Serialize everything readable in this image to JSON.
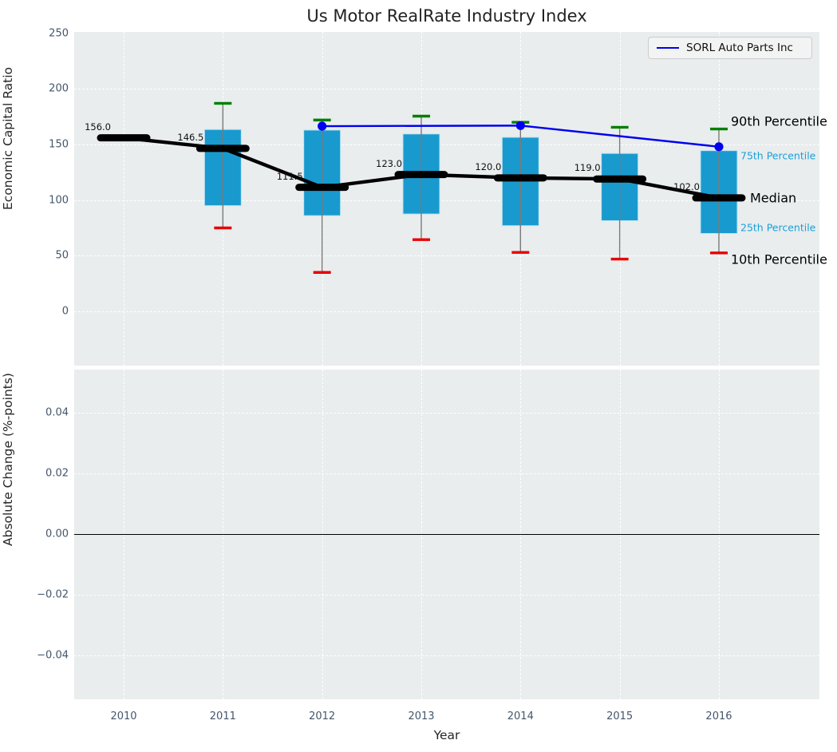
{
  "title": "Us Motor RealRate Industry Index",
  "legend": {
    "label": "SORL Auto Parts Inc",
    "line_color": "#0000ee"
  },
  "colors": {
    "axes_background": "#e9edee",
    "box_fill": "#189acf",
    "box_edge": "#bfe3f2",
    "median": "#000000",
    "whisker": "#7a7a7a",
    "cap_top": "#008000",
    "cap_bottom": "#e80000",
    "company_line": "#0000ee",
    "tick_text": "#44566b",
    "percentile_small_text": "#1b9fd8"
  },
  "top_axis": {
    "ylabel": "Economic Capital Ratio",
    "yticks": [
      250,
      200,
      150,
      100,
      50,
      0
    ],
    "ylim": [
      -48,
      252
    ]
  },
  "bottom_axis": {
    "ylabel": "Absolute Change (%-points)",
    "yticks": [
      "0.04",
      "0.02",
      "0.00",
      "−0.02",
      "−0.04"
    ],
    "ytick_values": [
      0.04,
      0.02,
      0.0,
      -0.02,
      -0.04
    ],
    "zero_line_value": "0.00"
  },
  "x_axis": {
    "xlabel": "Year",
    "ticks": [
      "2010",
      "2011",
      "2012",
      "2013",
      "2014",
      "2015",
      "2016"
    ]
  },
  "percentile_labels": [
    {
      "text": "90th Percentile",
      "size": "large",
      "color": "#000000",
      "anchor": "p90",
      "dy": -10,
      "x": 916
    },
    {
      "text": "75th Percentile",
      "size": "small",
      "color": "#1b9fd8",
      "anchor": "q3",
      "dy": 6,
      "x": 928
    },
    {
      "text": "Median",
      "size": "large",
      "color": "#000000",
      "anchor": "median",
      "dy": 0,
      "x": 940
    },
    {
      "text": "25th Percentile",
      "size": "small",
      "color": "#1b9fd8",
      "anchor": "q1",
      "dy": -7,
      "x": 928
    },
    {
      "text": "10th Percentile",
      "size": "large",
      "color": "#000000",
      "anchor": "p10",
      "dy": 8,
      "x": 916
    }
  ],
  "chart_data": {
    "type": "boxplot+line",
    "title": "Us Motor RealRate Industry Index",
    "xlabel": "Year",
    "ylabel_top": "Economic Capital Ratio",
    "ylabel_bottom": "Absolute Change (%-points)",
    "years": [
      2010,
      2011,
      2012,
      2013,
      2014,
      2015,
      2016
    ],
    "boxes": [
      {
        "year": 2010,
        "median": 156.0,
        "q1": null,
        "q3": null,
        "p10": null,
        "p90": null,
        "label": "156.0"
      },
      {
        "year": 2011,
        "median": 146.5,
        "q1": 95,
        "q3": 163.5,
        "p10": 75,
        "p90": 187,
        "label": "146.5"
      },
      {
        "year": 2012,
        "median": 111.5,
        "q1": 86,
        "q3": 163,
        "p10": 35,
        "p90": 172,
        "label": "111.5"
      },
      {
        "year": 2013,
        "median": 123.0,
        "q1": 87.5,
        "q3": 159.5,
        "p10": 64.5,
        "p90": 175.5,
        "label": "123.0"
      },
      {
        "year": 2014,
        "median": 120.0,
        "q1": 77,
        "q3": 156.5,
        "p10": 53,
        "p90": 170,
        "label": "120.0"
      },
      {
        "year": 2015,
        "median": 119.0,
        "q1": 81.5,
        "q3": 142,
        "p10": 47,
        "p90": 165.5,
        "label": "119.0"
      },
      {
        "year": 2016,
        "median": 102.0,
        "q1": 70,
        "q3": 144.5,
        "p10": 52.5,
        "p90": 164,
        "label": "102.0"
      }
    ],
    "series": [
      {
        "name": "SORL Auto Parts Inc",
        "color": "#0000ee",
        "points": [
          {
            "x": 2012,
            "y": 166.5
          },
          {
            "x": 2014,
            "y": 167.0
          },
          {
            "x": 2016,
            "y": 148.0
          }
        ]
      }
    ],
    "bottom_panel": {
      "data": [],
      "zero_line": 0.0,
      "ylim": [
        -0.055,
        0.055
      ]
    }
  }
}
